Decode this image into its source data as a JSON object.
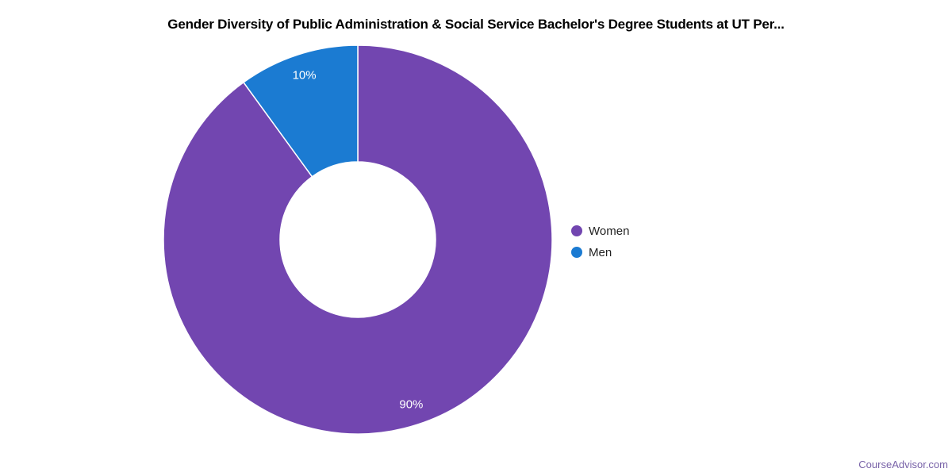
{
  "chart_data": {
    "type": "pie",
    "donut": true,
    "hole_ratio": 0.4,
    "title": "Gender Diversity of Public Administration & Social Service Bachelor's Degree Students at UT Per...",
    "legend_position": "right",
    "start_angle_deg": 0,
    "direction": "clockwise",
    "grid": false,
    "slice_border_color": "#ffffff",
    "label_color": "#ffffff",
    "slices": [
      {
        "label": "Women",
        "value": 90,
        "display": "90%",
        "color": "#7246b0"
      },
      {
        "label": "Men",
        "value": 10,
        "display": "10%",
        "color": "#1b7bd2"
      }
    ]
  },
  "colors": {
    "title": "#000000",
    "legend_text": "#222222",
    "attribution": "#7862a8",
    "background": "#ffffff"
  },
  "page": {
    "attribution": "CourseAdvisor.com"
  }
}
